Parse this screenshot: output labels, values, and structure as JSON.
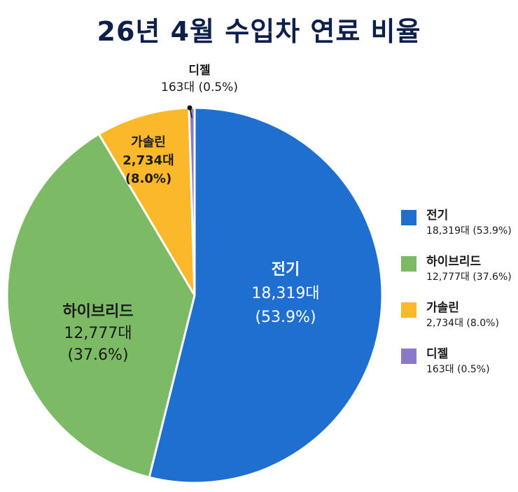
{
  "chart_data": {
    "type": "pie",
    "title": "26년 4월 수입차 연료 비율",
    "legend_position": "right",
    "slices": [
      {
        "name": "전기",
        "count_label": "18,319대",
        "percent_label": "(53.9%)",
        "value": 18319,
        "percent": 53.9,
        "color": "#1f6fd1"
      },
      {
        "name": "하이브리드",
        "count_label": "12,777대",
        "percent_label": "(37.6%)",
        "value": 12777,
        "percent": 37.6,
        "color": "#7dba65"
      },
      {
        "name": "가솔린",
        "count_label": "2,734대",
        "percent_label": "(8.0%)",
        "value": 2734,
        "percent": 8.0,
        "color": "#fbb82a"
      },
      {
        "name": "디젤",
        "count_label": "163대",
        "percent_label": "(0.5%)",
        "value": 163,
        "percent": 0.5,
        "color": "#8a78c8"
      }
    ]
  }
}
